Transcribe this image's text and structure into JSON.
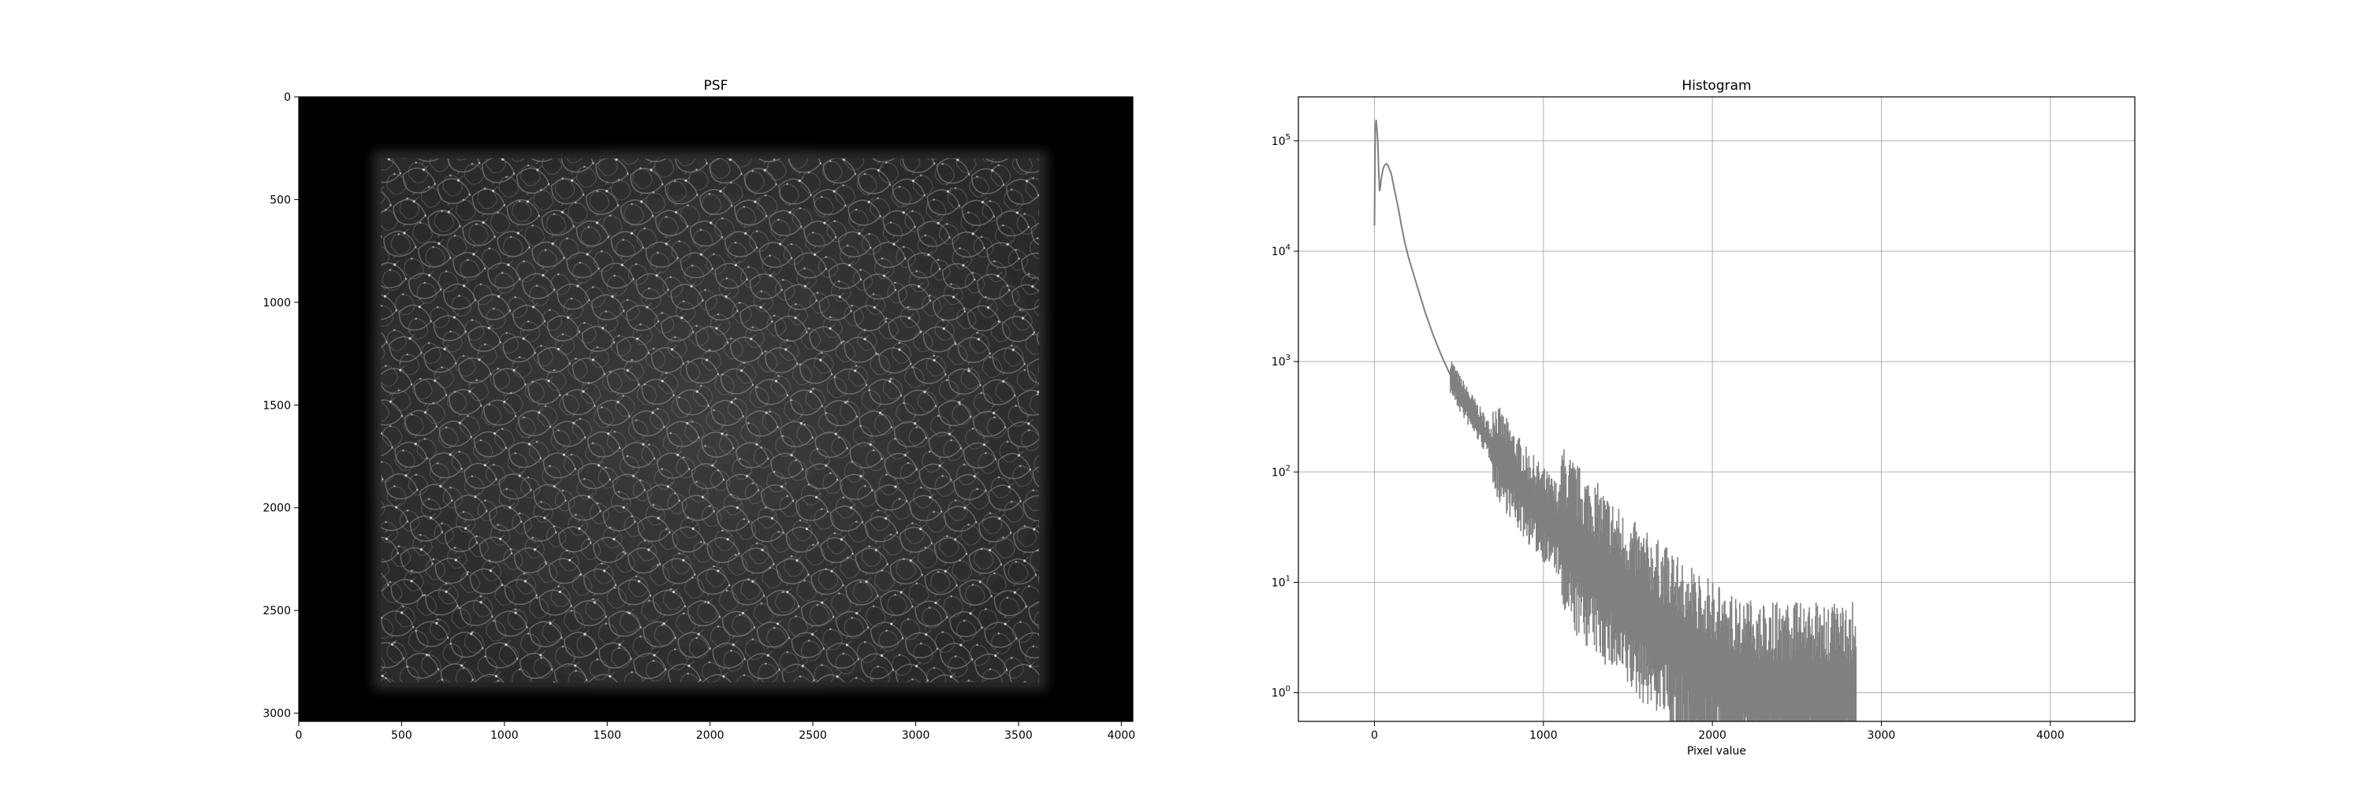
{
  "chart_data": [
    {
      "type": "heatmap",
      "title": "PSF",
      "xlabel": "",
      "ylabel": "",
      "colormap": "gray",
      "background": "#000000",
      "xlim": [
        0,
        4056
      ],
      "ylim": [
        3040,
        0
      ],
      "xticks": [
        0,
        500,
        1000,
        1500,
        2000,
        2500,
        3000,
        3500,
        4000
      ],
      "yticks": [
        0,
        500,
        1000,
        1500,
        2000,
        2500,
        3000
      ],
      "illuminated_region": {
        "x": [
          400,
          3600
        ],
        "y": [
          300,
          2850
        ]
      }
    },
    {
      "type": "line",
      "title": "Histogram",
      "xlabel": "Pixel value",
      "ylabel": "",
      "yscale": "log",
      "grid": true,
      "color": "#808080",
      "xlim": [
        -450,
        4500
      ],
      "ylim": [
        0.55,
        250000
      ],
      "xticks": [
        0,
        1000,
        2000,
        3000,
        4000
      ],
      "yticks": [
        {
          "value": 1,
          "label": "10",
          "exp": "0"
        },
        {
          "value": 10,
          "label": "10",
          "exp": "1"
        },
        {
          "value": 100,
          "label": "10",
          "exp": "2"
        },
        {
          "value": 1000,
          "label": "10",
          "exp": "3"
        },
        {
          "value": 10000,
          "label": "10",
          "exp": "4"
        },
        {
          "value": 100000,
          "label": "10",
          "exp": "5"
        }
      ],
      "series": [
        {
          "x": [
            0,
            5,
            10,
            15,
            20,
            25,
            30,
            35,
            40,
            50,
            60,
            70,
            80,
            90,
            100,
            110,
            120,
            140,
            160,
            180,
            200,
            250,
            300,
            350,
            400,
            450,
            500,
            600,
            700,
            800,
            900,
            1000,
            1100,
            1200,
            1300,
            1400,
            1500,
            1600,
            1700,
            1800,
            1900,
            2000,
            2100,
            2200,
            2300,
            2400,
            2500,
            2600,
            2700,
            2800,
            2850
          ],
          "y": [
            17000,
            130000,
            155000,
            125000,
            100000,
            55000,
            35000,
            38000,
            45000,
            55000,
            60000,
            62000,
            60000,
            55000,
            50000,
            42000,
            35000,
            25000,
            17000,
            12000,
            9000,
            5000,
            2800,
            1700,
            1100,
            750,
            520,
            300,
            170,
            100,
            60,
            40,
            28,
            18,
            13,
            9,
            6,
            4.5,
            3.5,
            2.5,
            2,
            1.6,
            1.3,
            1.1,
            1,
            1,
            1,
            1,
            1,
            1,
            1
          ]
        }
      ]
    }
  ]
}
